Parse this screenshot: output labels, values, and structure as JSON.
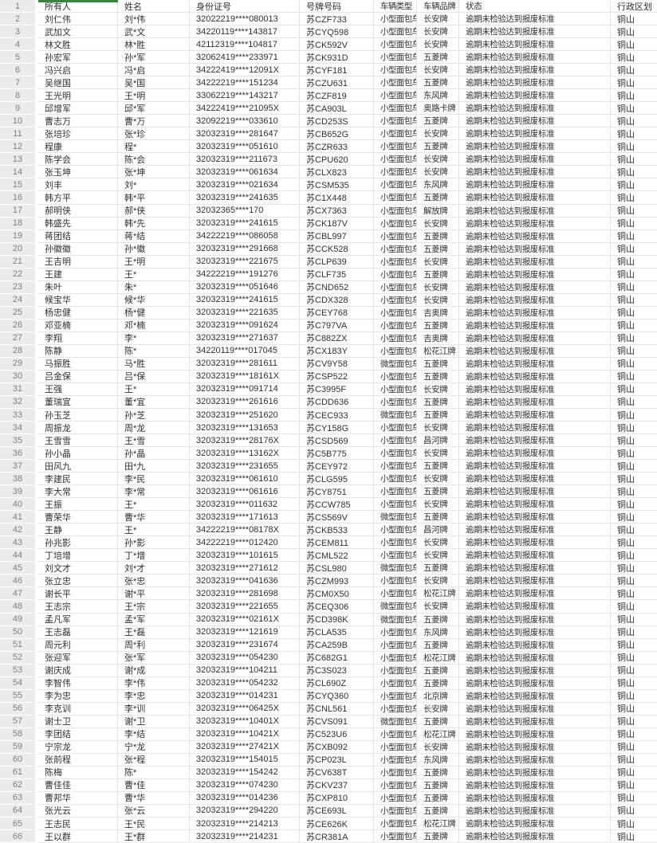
{
  "app": {
    "kind": "spreadsheet-grid"
  },
  "colors": {
    "selection_green": "#35883b",
    "row_number_bg": "#ececec",
    "gridline": "#e3e3e3"
  },
  "table": {
    "header_row": {
      "num": "1",
      "owner": "所有人",
      "name": "姓名",
      "id": "身份证号",
      "plate": "号牌号码",
      "type": "车辆类型",
      "brand": "车辆品牌",
      "status": "状态",
      "region": "行政区划"
    },
    "rows": [
      {
        "num": "2",
        "owner": "刘仁伟",
        "name": "刘*伟",
        "id": "32022219****080013",
        "plate": "苏CZF733",
        "type": "小型面包车",
        "brand": "长安牌",
        "status": "逾期未检验达到报废标准",
        "region": "铜山"
      },
      {
        "num": "3",
        "owner": "武加文",
        "name": "武*文",
        "id": "34220119****143817",
        "plate": "苏CYQ598",
        "type": "小型面包车",
        "brand": "长安牌",
        "status": "逾期未检验达到报废标准",
        "region": "铜山"
      },
      {
        "num": "4",
        "owner": "林文胜",
        "name": "林*胜",
        "id": "42112319****104817",
        "plate": "苏CK592V",
        "type": "小型面包车",
        "brand": "长安牌",
        "status": "逾期未检验达到报废标准",
        "region": "铜山"
      },
      {
        "num": "5",
        "owner": "孙宏军",
        "name": "孙*军",
        "id": "32062419****233971",
        "plate": "苏CK931D",
        "type": "小型面包车",
        "brand": "五菱牌",
        "status": "逾期未检验达到报废标准",
        "region": "铜山"
      },
      {
        "num": "6",
        "owner": "冯兴启",
        "name": "冯*启",
        "id": "34222419****12091X",
        "plate": "苏CYF181",
        "type": "小型面包车",
        "brand": "长安牌",
        "status": "逾期未检验达到报废标准",
        "region": "铜山"
      },
      {
        "num": "7",
        "owner": "吴继国",
        "name": "吴*国",
        "id": "34222219****151234",
        "plate": "苏CZU631",
        "type": "小型面包车",
        "brand": "五菱牌",
        "status": "逾期未检验达到报废标准",
        "region": "铜山"
      },
      {
        "num": "8",
        "owner": "王光明",
        "name": "王*明",
        "id": "33062219****143217",
        "plate": "苏CZF819",
        "type": "小型面包车",
        "brand": "东风牌",
        "status": "逾期未检验达到报废标准",
        "region": "铜山"
      },
      {
        "num": "9",
        "owner": "邱增军",
        "name": "邱*军",
        "id": "34222419****21095X",
        "plate": "苏CA903L",
        "type": "小型面包车",
        "brand": "奥路卡牌",
        "status": "逾期未检验达到报废标准",
        "region": "铜山"
      },
      {
        "num": "10",
        "owner": "曹志万",
        "name": "曹*万",
        "id": "32092219****033610",
        "plate": "苏CD253S",
        "type": "小型面包车",
        "brand": "五菱牌",
        "status": "逾期未检验达到报废标准",
        "region": "铜山"
      },
      {
        "num": "11",
        "owner": "张培珍",
        "name": "张*珍",
        "id": "32032319****281647",
        "plate": "苏CB652G",
        "type": "小型面包车",
        "brand": "长安牌",
        "status": "逾期未检验达到报废标准",
        "region": "铜山"
      },
      {
        "num": "12",
        "owner": "程康",
        "name": "程*",
        "id": "32032319****051610",
        "plate": "苏CZR633",
        "type": "小型面包车",
        "brand": "五菱牌",
        "status": "逾期未检验达到报废标准",
        "region": "铜山"
      },
      {
        "num": "13",
        "owner": "陈学会",
        "name": "陈*会",
        "id": "32032319****211673",
        "plate": "苏CPU620",
        "type": "小型面包车",
        "brand": "长安牌",
        "status": "逾期未检验达到报废标准",
        "region": "铜山"
      },
      {
        "num": "14",
        "owner": "张玉坤",
        "name": "张*坤",
        "id": "32032319****061634",
        "plate": "苏CLX823",
        "type": "小型面包车",
        "brand": "长安牌",
        "status": "逾期未检验达到报废标准",
        "region": "铜山"
      },
      {
        "num": "15",
        "owner": "刘丰",
        "name": "刘*",
        "id": "32032319****021634",
        "plate": "苏CSM535",
        "type": "小型面包车",
        "brand": "东风牌",
        "status": "逾期未检验达到报废标准",
        "region": "铜山"
      },
      {
        "num": "16",
        "owner": "韩方平",
        "name": "韩*平",
        "id": "32032319****241635",
        "plate": "苏C1X448",
        "type": "小型面包车",
        "brand": "五菱牌",
        "status": "逾期未检验达到报废标准",
        "region": "铜山"
      },
      {
        "num": "17",
        "owner": "郝明侠",
        "name": "郝*侠",
        "id": "32032365****170",
        "plate": "苏CX7363",
        "type": "小型面包车",
        "brand": "解放牌",
        "status": "逾期未检验达到报废标准",
        "region": "铜山"
      },
      {
        "num": "18",
        "owner": "韩盛先",
        "name": "韩*先",
        "id": "32032319****241615",
        "plate": "苏CK187V",
        "type": "小型面包车",
        "brand": "长安牌",
        "status": "逾期未检验达到报废标准",
        "region": "铜山"
      },
      {
        "num": "19",
        "owner": "蒋团结",
        "name": "蒋*结",
        "id": "34222219****086058",
        "plate": "苏CBL997",
        "type": "小型面包车",
        "brand": "五菱牌",
        "status": "逾期未检验达到报废标准",
        "region": "铜山"
      },
      {
        "num": "20",
        "owner": "孙徽徽",
        "name": "孙*徽",
        "id": "32032319****291668",
        "plate": "苏CCK528",
        "type": "小型面包车",
        "brand": "五菱牌",
        "status": "逾期未检验达到报废标准",
        "region": "铜山"
      },
      {
        "num": "21",
        "owner": "王吉明",
        "name": "王*明",
        "id": "32032319****221675",
        "plate": "苏CLP639",
        "type": "小型面包车",
        "brand": "长安牌",
        "status": "逾期未检验达到报废标准",
        "region": "铜山"
      },
      {
        "num": "22",
        "owner": "王建",
        "name": "王*",
        "id": "34222219****191276",
        "plate": "苏CLF735",
        "type": "小型面包车",
        "brand": "五菱牌",
        "status": "逾期未检验达到报废标准",
        "region": "铜山"
      },
      {
        "num": "23",
        "owner": "朱叶",
        "name": "朱*",
        "id": "32032319****051646",
        "plate": "苏CND652",
        "type": "小型面包车",
        "brand": "长安牌",
        "status": "逾期未检验达到报废标准",
        "region": "铜山"
      },
      {
        "num": "24",
        "owner": "候宝华",
        "name": "候*华",
        "id": "32032319****241615",
        "plate": "苏CDX328",
        "type": "小型面包车",
        "brand": "长安牌",
        "status": "逾期未检验达到报废标准",
        "region": "铜山"
      },
      {
        "num": "25",
        "owner": "杨忠健",
        "name": "杨*健",
        "id": "32032319****221635",
        "plate": "苏CEY768",
        "type": "小型面包车",
        "brand": "吉奥牌",
        "status": "逾期未检验达到报废标准",
        "region": "铜山"
      },
      {
        "num": "26",
        "owner": "邓亚楠",
        "name": "邓*楠",
        "id": "32032319****091624",
        "plate": "苏C797VA",
        "type": "小型面包车",
        "brand": "五菱牌",
        "status": "逾期未检验达到报废标准",
        "region": "铜山"
      },
      {
        "num": "27",
        "owner": "李翔",
        "name": "李*",
        "id": "32032319****271637",
        "plate": "苏C882ZX",
        "type": "小型面包车",
        "brand": "吉奥牌",
        "status": "逾期未检验达到报废标准",
        "region": "铜山"
      },
      {
        "num": "28",
        "owner": "陈静",
        "name": "陈*",
        "id": "34220119****017045",
        "plate": "苏CX183Y",
        "type": "小型面包车",
        "brand": "松花江牌",
        "status": "逾期未检验达到报废标准",
        "region": "铜山"
      },
      {
        "num": "29",
        "owner": "马振胜",
        "name": "马*胜",
        "id": "32032319****281611",
        "plate": "苏CV9Y58",
        "type": "微型面包车",
        "brand": "五菱牌",
        "status": "逾期未检验达到报废标准",
        "region": "铜山"
      },
      {
        "num": "30",
        "owner": "吕金保",
        "name": "吕*保",
        "id": "32032319****18161X",
        "plate": "苏CSP522",
        "type": "小型面包车",
        "brand": "五菱牌",
        "status": "逾期未检验达到报废标准",
        "region": "铜山"
      },
      {
        "num": "31",
        "owner": "王强",
        "name": "王*",
        "id": "32032319****091714",
        "plate": "苏C3995F",
        "type": "小型面包车",
        "brand": "长安牌",
        "status": "逾期未检验达到报废标准",
        "region": "铜山"
      },
      {
        "num": "32",
        "owner": "董瑞宜",
        "name": "董*宜",
        "id": "32032319****261616",
        "plate": "苏CDD636",
        "type": "小型面包车",
        "brand": "五菱牌",
        "status": "逾期未检验达到报废标准",
        "region": "铜山"
      },
      {
        "num": "33",
        "owner": "孙玉芝",
        "name": "孙*芝",
        "id": "32032319****251620",
        "plate": "苏CEC933",
        "type": "微型面包车",
        "brand": "五菱牌",
        "status": "逾期未检验达到报废标准",
        "region": "铜山"
      },
      {
        "num": "34",
        "owner": "周振龙",
        "name": "周*龙",
        "id": "32032319****131653",
        "plate": "苏CY158G",
        "type": "小型面包车",
        "brand": "长安牌",
        "status": "逾期未检验达到报废标准",
        "region": "铜山"
      },
      {
        "num": "35",
        "owner": "王雪雪",
        "name": "王*雪",
        "id": "32032319****28176X",
        "plate": "苏CSD569",
        "type": "小型面包车",
        "brand": "昌河牌",
        "status": "逾期未检验达到报废标准",
        "region": "铜山"
      },
      {
        "num": "36",
        "owner": "孙小晶",
        "name": "孙*晶",
        "id": "32032319****13162X",
        "plate": "苏C5B775",
        "type": "小型面包车",
        "brand": "长安牌",
        "status": "逾期未检验达到报废标准",
        "region": "铜山"
      },
      {
        "num": "37",
        "owner": "田风九",
        "name": "田*九",
        "id": "32032319****231655",
        "plate": "苏CEY972",
        "type": "小型面包车",
        "brand": "五菱牌",
        "status": "逾期未检验达到报废标准",
        "region": "铜山"
      },
      {
        "num": "38",
        "owner": "李建民",
        "name": "李*民",
        "id": "32032319****061610",
        "plate": "苏CLG595",
        "type": "小型面包车",
        "brand": "长安牌",
        "status": "逾期未检验达到报废标准",
        "region": "铜山"
      },
      {
        "num": "39",
        "owner": "李大常",
        "name": "李*常",
        "id": "32032319****061616",
        "plate": "苏CY8751",
        "type": "小型面包车",
        "brand": "五菱牌",
        "status": "逾期未检验达到报废标准",
        "region": "铜山"
      },
      {
        "num": "40",
        "owner": "王振",
        "name": "王*",
        "id": "32032319****011632",
        "plate": "苏CCW785",
        "type": "小型面包车",
        "brand": "长安牌",
        "status": "逾期未检验达到报废标准",
        "region": "铜山"
      },
      {
        "num": "41",
        "owner": "曹荣华",
        "name": "曹*华",
        "id": "32032319****171613",
        "plate": "苏CS569V",
        "type": "微型面包车",
        "brand": "五菱牌",
        "status": "逾期未检验达到报废标准",
        "region": "铜山"
      },
      {
        "num": "42",
        "owner": "王静",
        "name": "王*",
        "id": "34222219****08178X",
        "plate": "苏CKB533",
        "type": "小型面包车",
        "brand": "昌河牌",
        "status": "逾期未检验达到报废标准",
        "region": "铜山"
      },
      {
        "num": "43",
        "owner": "孙兆影",
        "name": "孙*影",
        "id": "34222219****012420",
        "plate": "苏CEM811",
        "type": "小型面包车",
        "brand": "长安牌",
        "status": "逾期未检验达到报废标准",
        "region": "铜山"
      },
      {
        "num": "44",
        "owner": "丁培增",
        "name": "丁*增",
        "id": "32032319****101615",
        "plate": "苏CML522",
        "type": "小型面包车",
        "brand": "长安牌",
        "status": "逾期未检验达到报废标准",
        "region": "铜山"
      },
      {
        "num": "45",
        "owner": "刘文才",
        "name": "刘*才",
        "id": "32032319****271612",
        "plate": "苏CSL980",
        "type": "微型面包车",
        "brand": "五菱牌",
        "status": "逾期未检验达到报废标准",
        "region": "铜山"
      },
      {
        "num": "46",
        "owner": "张立忠",
        "name": "张*忠",
        "id": "32032319****041636",
        "plate": "苏CZM993",
        "type": "小型面包车",
        "brand": "长安牌",
        "status": "逾期未检验达到报废标准",
        "region": "铜山"
      },
      {
        "num": "47",
        "owner": "谢长平",
        "name": "谢*平",
        "id": "32032319****281698",
        "plate": "苏CM0X50",
        "type": "小型面包车",
        "brand": "松花江牌",
        "status": "逾期未检验达到报废标准",
        "region": "铜山"
      },
      {
        "num": "48",
        "owner": "王志宗",
        "name": "王*宗",
        "id": "32032319****221655",
        "plate": "苏CEQ306",
        "type": "微型面包车",
        "brand": "长安牌",
        "status": "逾期未检验达到报废标准",
        "region": "铜山"
      },
      {
        "num": "49",
        "owner": "孟凡军",
        "name": "孟*军",
        "id": "32032319****02161X",
        "plate": "苏CD398K",
        "type": "微型面包车",
        "brand": "五菱牌",
        "status": "逾期未检验达到报废标准",
        "region": "铜山"
      },
      {
        "num": "50",
        "owner": "王志磊",
        "name": "王*磊",
        "id": "32032319****121619",
        "plate": "苏CLA535",
        "type": "小型面包车",
        "brand": "东风牌",
        "status": "逾期未检验达到报废标准",
        "region": "铜山"
      },
      {
        "num": "51",
        "owner": "周元利",
        "name": "周*利",
        "id": "32032319****231674",
        "plate": "苏CA259B",
        "type": "小型面包车",
        "brand": "五菱牌",
        "status": "逾期未检验达到报废标准",
        "region": "铜山"
      },
      {
        "num": "52",
        "owner": "张迎军",
        "name": "张*军",
        "id": "32032319****054230",
        "plate": "苏C682G1",
        "type": "小型面包车",
        "brand": "松花江牌",
        "status": "逾期未检验达到报废标准",
        "region": "铜山"
      },
      {
        "num": "53",
        "owner": "谢庆成",
        "name": "谢*成",
        "id": "32032319****104211",
        "plate": "苏C3S023",
        "type": "小型面包车",
        "brand": "五菱牌",
        "status": "逾期未检验达到报废标准",
        "region": "铜山"
      },
      {
        "num": "54",
        "owner": "李智伟",
        "name": "李*伟",
        "id": "32032319****054232",
        "plate": "苏CL690Z",
        "type": "小型面包车",
        "brand": "五菱牌",
        "status": "逾期未检验达到报废标准",
        "region": "铜山"
      },
      {
        "num": "55",
        "owner": "李为忠",
        "name": "李*忠",
        "id": "32032319****014231",
        "plate": "苏CYQ360",
        "type": "小型面包车",
        "brand": "北京牌",
        "status": "逾期未检验达到报废标准",
        "region": "铜山"
      },
      {
        "num": "56",
        "owner": "李克训",
        "name": "李*训",
        "id": "32032319****06425X",
        "plate": "苏CNL561",
        "type": "小型面包车",
        "brand": "长安牌",
        "status": "逾期未检验达到报废标准",
        "region": "铜山"
      },
      {
        "num": "57",
        "owner": "谢士卫",
        "name": "谢*卫",
        "id": "32032319****10401X",
        "plate": "苏CVS091",
        "type": "微型面包车",
        "brand": "五菱牌",
        "status": "逾期未检验达到报废标准",
        "region": "铜山"
      },
      {
        "num": "58",
        "owner": "李团结",
        "name": "李*结",
        "id": "32032319****10421X",
        "plate": "苏C523U6",
        "type": "小型面包车",
        "brand": "松花江牌",
        "status": "逾期未检验达到报废标准",
        "region": "铜山"
      },
      {
        "num": "59",
        "owner": "宁宗龙",
        "name": "宁*龙",
        "id": "32032319****27421X",
        "plate": "苏CXB092",
        "type": "小型面包车",
        "brand": "长安牌",
        "status": "逾期未检验达到报废标准",
        "region": "铜山"
      },
      {
        "num": "60",
        "owner": "张前程",
        "name": "张*程",
        "id": "32032319****154015",
        "plate": "苏CP023L",
        "type": "小型面包车",
        "brand": "东风牌",
        "status": "逾期未检验达到报废标准",
        "region": "铜山"
      },
      {
        "num": "61",
        "owner": "陈梅",
        "name": "陈*",
        "id": "32032319****154242",
        "plate": "苏CV638T",
        "type": "小型面包车",
        "brand": "五菱牌",
        "status": "逾期未检验达到报废标准",
        "region": "铜山"
      },
      {
        "num": "62",
        "owner": "曹佳佳",
        "name": "曹*佳",
        "id": "32032319****074230",
        "plate": "苏CKV237",
        "type": "小型面包车",
        "brand": "五菱牌",
        "status": "逾期未检验达到报废标准",
        "region": "铜山"
      },
      {
        "num": "63",
        "owner": "曹邦华",
        "name": "曹*华",
        "id": "32032319****014236",
        "plate": "苏CXP810",
        "type": "小型面包车",
        "brand": "五菱牌",
        "status": "逾期未检验达到报废标准",
        "region": "铜山"
      },
      {
        "num": "64",
        "owner": "张光云",
        "name": "张*云",
        "id": "32032319****294220",
        "plate": "苏CE693L",
        "type": "小型面包车",
        "brand": "五菱牌",
        "status": "逾期未检验达到报废标准",
        "region": "铜山"
      },
      {
        "num": "65",
        "owner": "王志民",
        "name": "王*民",
        "id": "32032319****214213",
        "plate": "苏CE626K",
        "type": "小型面包车",
        "brand": "松花江牌",
        "status": "逾期未检验达到报废标准",
        "region": "铜山"
      },
      {
        "num": "66",
        "owner": "王以群",
        "name": "王*群",
        "id": "32032319****214231",
        "plate": "苏CR381A",
        "type": "小型面包车",
        "brand": "五菱牌",
        "status": "逾期未检验达到报废标准",
        "region": "铜山"
      }
    ]
  }
}
